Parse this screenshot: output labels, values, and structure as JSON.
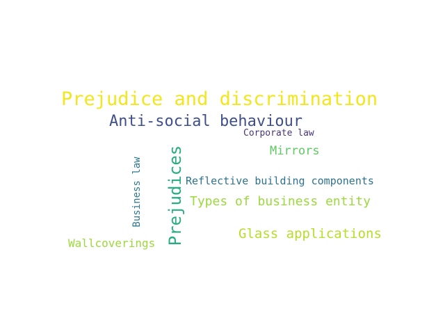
{
  "word_cloud": {
    "words": [
      {
        "text": "Prejudice and discrimination",
        "color": "#f2e61c"
      },
      {
        "text": "Anti-social behaviour",
        "color": "#3f4f8c"
      },
      {
        "text": "Corporate law",
        "color": "#46337e"
      },
      {
        "text": "Mirrors",
        "color": "#5ec962"
      },
      {
        "text": "Reflective building components",
        "color": "#2c728e"
      },
      {
        "text": "Types of business entity",
        "color": "#9bd93c"
      },
      {
        "text": "Glass applications",
        "color": "#b5de2b"
      },
      {
        "text": "Wallcoverings",
        "color": "#9bd93c"
      },
      {
        "text": "Business law",
        "color": "#2a788e"
      },
      {
        "text": "Prejudices",
        "color": "#27ad81"
      }
    ]
  }
}
